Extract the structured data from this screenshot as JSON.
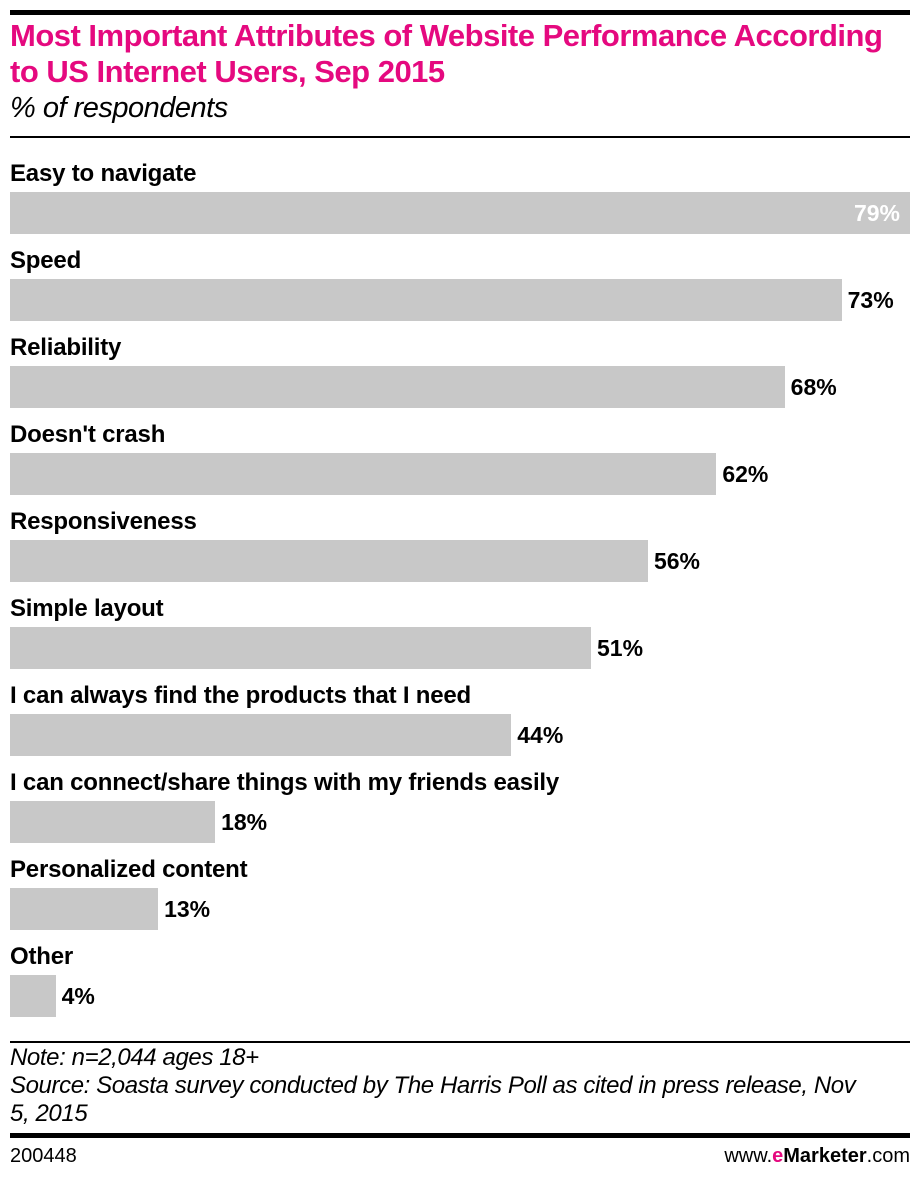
{
  "chart_data": {
    "type": "bar",
    "orientation": "horizontal",
    "title": "Most Important Attributes of Website Performance According to US Internet Users, Sep 2015",
    "subtitle": "% of respondents",
    "categories": [
      "Easy to navigate",
      "Speed",
      "Reliability",
      "Doesn't crash",
      "Responsiveness",
      "Simple layout",
      "I can always find the products that I need",
      "I can connect/share things with my friends easily",
      "Personalized content",
      "Other"
    ],
    "values": [
      79,
      73,
      68,
      62,
      56,
      51,
      44,
      18,
      13,
      4
    ],
    "value_labels": [
      "79%",
      "73%",
      "68%",
      "62%",
      "56%",
      "51%",
      "44%",
      "18%",
      "13%",
      "4%"
    ],
    "xlim": [
      0,
      79
    ],
    "grid": false,
    "bar_color": "#c8c8c8",
    "title_color": "#e5097f"
  },
  "footer": {
    "note": "Note: n=2,044 ages 18+",
    "source": "Source: Soasta survey conducted by The Harris Poll as cited in press release, Nov 5, 2015",
    "chart_id": "200448",
    "brand_prefix": "www.",
    "brand_e": "e",
    "brand_name": "Marketer",
    "brand_suffix": ".com"
  }
}
